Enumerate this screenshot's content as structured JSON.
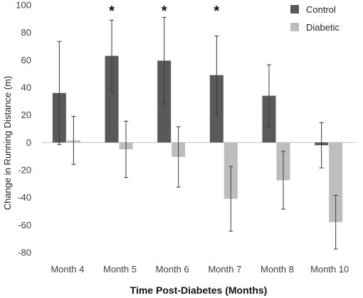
{
  "chart_data": {
    "type": "bar",
    "title": "",
    "xlabel": "Time Post-Diabetes (Months)",
    "ylabel": "Change in Running Distance (m)",
    "ylim": [
      -80,
      100
    ],
    "yticks": [
      "100",
      "80",
      "60",
      "40",
      "20",
      "0",
      "-20",
      "-40",
      "-60",
      "-80"
    ],
    "grid": false,
    "legend_position": "top-right",
    "categories": [
      "Month 4",
      "Month 5",
      "Month 6",
      "Month 7",
      "Month 8",
      "Month 10"
    ],
    "series": [
      {
        "name": "Control",
        "color": "#595959",
        "values": [
          36,
          63,
          59.5,
          49,
          34,
          -2
        ],
        "error": [
          37.5,
          26,
          31.5,
          28.5,
          22.5,
          16.5
        ]
      },
      {
        "name": "Diabetic",
        "color": "#bdbdbd",
        "values": [
          1.5,
          -5,
          -10.5,
          -41,
          -27.5,
          -58
        ],
        "error": [
          17.5,
          20.5,
          22,
          23.5,
          21,
          19.5
        ]
      }
    ],
    "annotations": [
      {
        "category": "Month 5",
        "text": "*"
      },
      {
        "category": "Month 6",
        "text": "*"
      },
      {
        "category": "Month 7",
        "text": "*"
      }
    ]
  }
}
